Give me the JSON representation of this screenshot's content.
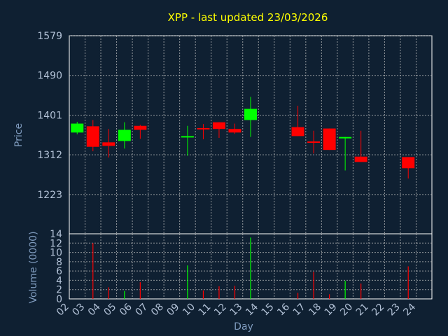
{
  "chart_data": {
    "type": "candlestick",
    "title": "XPP - last updated 23/03/2026",
    "xlabel": "Day",
    "ylabel": "Price",
    "volume_label": "Volume (0000)",
    "price_ticks": [
      1223,
      1312,
      1401,
      1490,
      1579
    ],
    "price_range": [
      1135,
      1579
    ],
    "volume_ticks": [
      0,
      2,
      4,
      6,
      8,
      10,
      12,
      14
    ],
    "volume_range": [
      0,
      14
    ],
    "day_labels": [
      "02",
      "03",
      "04",
      "05",
      "06",
      "07",
      "08",
      "09",
      "10",
      "11",
      "12",
      "13",
      "14",
      "15",
      "16",
      "17",
      "18",
      "19",
      "20",
      "21",
      "22",
      "23",
      "24"
    ],
    "colors": {
      "up": "#00ff00",
      "down": "#ff0000",
      "background": "#0f2032",
      "title": "#ffff00"
    },
    "candles": [
      {
        "day": "02",
        "open": 1362,
        "close": 1382,
        "high": 1386,
        "low": 1358
      },
      {
        "day": "03",
        "open": 1376,
        "close": 1330,
        "high": 1390,
        "low": 1320
      },
      {
        "day": "04",
        "open": 1340,
        "close": 1332,
        "high": 1370,
        "low": 1306
      },
      {
        "day": "05",
        "open": 1343,
        "close": 1368,
        "high": 1385,
        "low": 1326
      },
      {
        "day": "06",
        "open": 1377,
        "close": 1368,
        "high": 1379,
        "low": 1348
      },
      {
        "day": "09",
        "open": 1351,
        "close": 1354,
        "high": 1377,
        "low": 1310
      },
      {
        "day": "10",
        "open": 1372,
        "close": 1370,
        "high": 1381,
        "low": 1347
      },
      {
        "day": "11",
        "open": 1385,
        "close": 1370,
        "high": 1385,
        "low": 1350
      },
      {
        "day": "12",
        "open": 1370,
        "close": 1362,
        "high": 1382,
        "low": 1359
      },
      {
        "day": "13",
        "open": 1390,
        "close": 1415,
        "high": 1442,
        "low": 1352
      },
      {
        "day": "16",
        "open": 1374,
        "close": 1354,
        "high": 1422,
        "low": 1354
      },
      {
        "day": "17",
        "open": 1342,
        "close": 1340,
        "high": 1366,
        "low": 1315
      },
      {
        "day": "18",
        "open": 1371,
        "close": 1323,
        "high": 1371,
        "low": 1323
      },
      {
        "day": "19",
        "open": 1350,
        "close": 1352,
        "high": 1352,
        "low": 1277
      },
      {
        "day": "20",
        "open": 1308,
        "close": 1296,
        "high": 1366,
        "low": 1296
      },
      {
        "day": "23",
        "open": 1307,
        "close": 1282,
        "high": 1307,
        "low": 1259
      }
    ],
    "volume": [
      {
        "day": "02",
        "value": 0.0
      },
      {
        "day": "03",
        "value": 12.0
      },
      {
        "day": "04",
        "value": 2.5
      },
      {
        "day": "05",
        "value": 1.7
      },
      {
        "day": "06",
        "value": 3.6
      },
      {
        "day": "09",
        "value": 7.2
      },
      {
        "day": "10",
        "value": 1.8
      },
      {
        "day": "11",
        "value": 2.7
      },
      {
        "day": "12",
        "value": 2.8
      },
      {
        "day": "13",
        "value": 13.2
      },
      {
        "day": "16",
        "value": 1.3
      },
      {
        "day": "17",
        "value": 5.8
      },
      {
        "day": "18",
        "value": 1.0
      },
      {
        "day": "19",
        "value": 3.9
      },
      {
        "day": "20",
        "value": 3.3
      },
      {
        "day": "23",
        "value": 7.0
      }
    ],
    "grid": true
  }
}
